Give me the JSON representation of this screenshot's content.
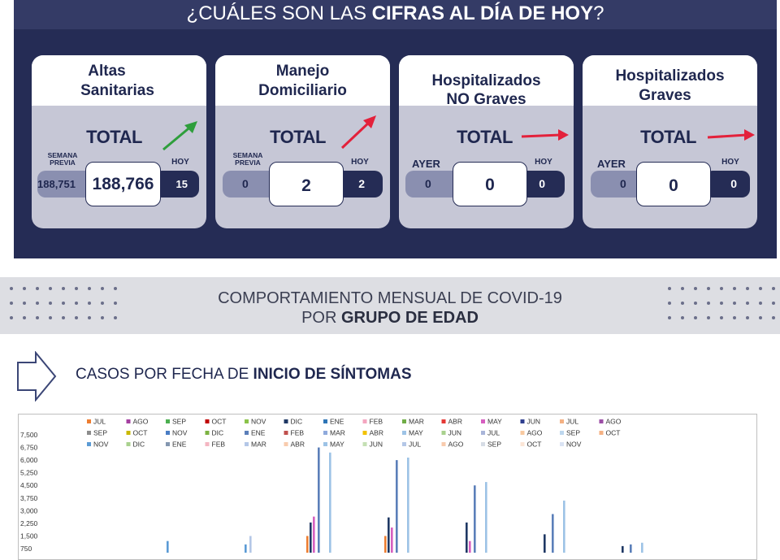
{
  "header": {
    "title_pre": "¿CUÁLES SON LAS ",
    "title_bold": "CIFRAS AL DÍA DE HOY",
    "title_post": "?"
  },
  "cards": [
    {
      "title_line1": "Altas",
      "title_line2": "Sanitarias",
      "total_label": "TOTAL",
      "trend": "up",
      "left_label_line1": "SEMANA",
      "left_label_line2": "PREVIA",
      "right_label": "HOY",
      "left_value": "188,751",
      "center_value": "188,766",
      "right_value": "15"
    },
    {
      "title_line1": "Manejo",
      "title_line2": "Domiciliario",
      "total_label": "TOTAL",
      "trend": "up",
      "left_label_line1": "SEMANA",
      "left_label_line2": "PREVIA",
      "right_label": "HOY",
      "left_value": "0",
      "center_value": "2",
      "right_value": "2"
    },
    {
      "title_line1": "Hospitalizados",
      "title_line2": "NO Graves",
      "total_label": "TOTAL",
      "trend": "flat",
      "left_label": "AYER",
      "right_label": "HOY",
      "left_value": "0",
      "center_value": "0",
      "right_value": "0"
    },
    {
      "title_line1": "Hospitalizados",
      "title_line2": "Graves",
      "total_label": "TOTAL",
      "trend": "flat",
      "left_label": "AYER",
      "right_label": "HOY",
      "left_value": "0",
      "center_value": "0",
      "right_value": "0"
    }
  ],
  "colors": {
    "navy": "#252c55",
    "up_arrow_altas": "#2e9e3c",
    "up_arrow_manejo": "#e3213b",
    "flat_arrow": "#e3213b"
  },
  "band": {
    "line1": "COMPORTAMIENTO MENSUAL DE COVID-19",
    "line2_pre": "POR ",
    "line2_bold": "GRUPO DE EDAD"
  },
  "subtitle": {
    "pre": "CASOS POR FECHA DE ",
    "bold": "INICIO  DE SÍNTOMAS"
  },
  "chart_data": {
    "type": "bar",
    "legend": [
      "JUL",
      "AGO",
      "SEP",
      "OCT",
      "NOV",
      "DIC",
      "ENE",
      "FEB",
      "MAR",
      "ABR",
      "MAY",
      "JUN",
      "JUL",
      "AGO",
      "SEP",
      "OCT",
      "NOV",
      "DIC",
      "ENE",
      "FEB",
      "MAR",
      "ABR",
      "MAY",
      "JUN",
      "JUL",
      "AGO",
      "SEP",
      "OCT",
      "NOV",
      "DIC",
      "ENE",
      "FEB",
      "MAR",
      "ABR",
      "MAY",
      "JUN",
      "JUL",
      "AGO",
      "SEP",
      "OCT",
      "NOV"
    ],
    "legend_colors": [
      "#ed7d31",
      "#a43fa0",
      "#4caf50",
      "#c00000",
      "#8bc34a",
      "#1f3864",
      "#2e75b6",
      "#f4a6c0",
      "#70ad47",
      "#e53935",
      "#d65fc0",
      "#2f3f8f",
      "#f4b183",
      "#9c4ea6",
      "#8c8c8c",
      "#c9b800",
      "#4a7dc4",
      "#7cb342",
      "#5b7fb9",
      "#c0504d",
      "#8faadc",
      "#f2c200",
      "#9dc3e6",
      "#a9d18e",
      "#a9b5d9",
      "#f8c9a0",
      "#bdd7ee",
      "#f4b183",
      "#5b9bd5",
      "#a9d18e",
      "#8497b0",
      "#f4b6c2",
      "#b4c7e7",
      "#f8cbad",
      "#9dc3e6",
      "#c5e0b4",
      "#b4c7e7",
      "#f8cbad",
      "#d6dce5",
      "#fbe5d6",
      "#dae3f3"
    ],
    "y_ticks": [
      "7,500",
      "6,750",
      "6,000",
      "5,250",
      "4,500",
      "3,750",
      "3,000",
      "2,250",
      "1,500",
      "750"
    ],
    "ylim": [
      0,
      7500
    ],
    "bars": [
      {
        "group": 1,
        "series": 28,
        "value": 1200
      },
      {
        "group": 2,
        "series": 28,
        "value": 1000
      },
      {
        "group": 2,
        "series": 32,
        "value": 1500
      },
      {
        "group": 3,
        "series": 0,
        "value": 1500
      },
      {
        "group": 3,
        "series": 5,
        "value": 2300
      },
      {
        "group": 3,
        "series": 10,
        "value": 2650
      },
      {
        "group": 3,
        "series": 18,
        "value": 6750
      },
      {
        "group": 3,
        "series": 34,
        "value": 6450
      },
      {
        "group": 4,
        "series": 0,
        "value": 1500
      },
      {
        "group": 4,
        "series": 5,
        "value": 2600
      },
      {
        "group": 4,
        "series": 10,
        "value": 2000
      },
      {
        "group": 4,
        "series": 18,
        "value": 6000
      },
      {
        "group": 4,
        "series": 34,
        "value": 6150
      },
      {
        "group": 5,
        "series": 5,
        "value": 2300
      },
      {
        "group": 5,
        "series": 10,
        "value": 1200
      },
      {
        "group": 5,
        "series": 18,
        "value": 4500
      },
      {
        "group": 5,
        "series": 34,
        "value": 4700
      },
      {
        "group": 6,
        "series": 5,
        "value": 1600
      },
      {
        "group": 6,
        "series": 18,
        "value": 2800
      },
      {
        "group": 6,
        "series": 34,
        "value": 3600
      },
      {
        "group": 7,
        "series": 5,
        "value": 900
      },
      {
        "group": 7,
        "series": 18,
        "value": 1000
      },
      {
        "group": 7,
        "series": 34,
        "value": 1100
      }
    ]
  }
}
